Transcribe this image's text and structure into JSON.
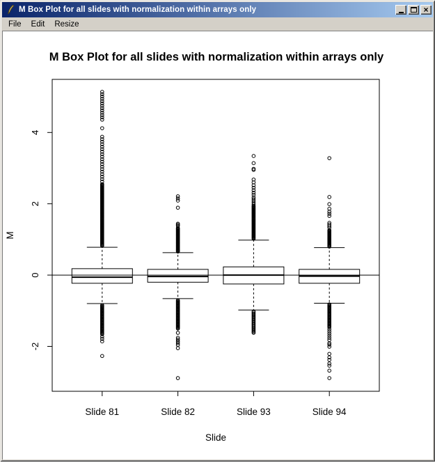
{
  "window": {
    "title": "M Box Plot for all slides with normalization within arrays only",
    "icon": "quill-pen-icon",
    "controls": {
      "minimize_icon": "minimize-icon",
      "maximize_icon": "maximize-icon",
      "close_icon": "close-icon",
      "close_glyph": "×"
    },
    "chrome_color": "#d4d0c8",
    "titlebar_gradient": [
      "#0a246a",
      "#a6caf0"
    ]
  },
  "menu": {
    "items": [
      "File",
      "Edit",
      "Resize"
    ]
  },
  "chart_data": {
    "type": "boxplot",
    "title": "M Box Plot for all slides with normalization within arrays only",
    "xlabel": "Slide",
    "ylabel": "M",
    "categories": [
      "Slide 81",
      "Slide 82",
      "Slide 93",
      "Slide 94"
    ],
    "positions": [
      1,
      2,
      3,
      4
    ],
    "y_ticks": [
      -2,
      0,
      2,
      4
    ],
    "y_tick_labels": [
      "-2",
      "0",
      "2",
      "4"
    ],
    "reference_line_y": 0,
    "axes": {
      "xlim": [
        0.34,
        4.66
      ],
      "ylim": [
        -3.26,
        5.49
      ],
      "grid": false
    },
    "style": {
      "ink_color": "#000000",
      "box_fill": "#ffffff",
      "background": "#ffffff"
    },
    "groups": [
      {
        "label": "Slide 81",
        "stats": {
          "whisker_low": -0.8,
          "q1": -0.23,
          "median": -0.06,
          "q3": 0.18,
          "whisker_high": 0.78
        },
        "outliers": [
          4.12,
          -1.73,
          -1.79,
          -1.86,
          -2.27
        ],
        "outliers_dense": [
          [
            0.82,
            2.55,
            0.02
          ],
          [
            2.55,
            3.9,
            0.07
          ],
          [
            4.36,
            5.2,
            0.065
          ],
          [
            -1.66,
            -0.84,
            0.022
          ]
        ]
      },
      {
        "label": "Slide 82",
        "stats": {
          "whisker_low": -0.66,
          "q1": -0.2,
          "median": -0.04,
          "q3": 0.16,
          "whisker_high": 0.63
        },
        "outliers": [
          1.38,
          1.41,
          1.44,
          1.89,
          2.09,
          2.15,
          2.21,
          -1.62,
          -1.76,
          -1.81,
          -1.86,
          -1.91,
          -1.96,
          -2.05,
          -2.89
        ],
        "outliers_dense": [
          [
            0.66,
            1.33,
            0.02
          ],
          [
            -1.5,
            -0.7,
            0.022
          ]
        ]
      },
      {
        "label": "Slide 93",
        "stats": {
          "whisker_low": -0.98,
          "q1": -0.25,
          "median": 0.0,
          "q3": 0.23,
          "whisker_high": 0.98
        },
        "outliers": [
          2.25,
          2.31,
          2.38,
          2.45,
          2.52,
          2.6,
          2.68,
          2.95,
          2.98,
          3.14,
          3.34
        ],
        "outliers_dense": [
          [
            1.02,
            1.95,
            0.02
          ],
          [
            1.98,
            2.2,
            0.05
          ],
          [
            -1.62,
            -1.02,
            0.03
          ]
        ]
      },
      {
        "label": "Slide 94",
        "stats": {
          "whisker_low": -0.79,
          "q1": -0.23,
          "median": -0.03,
          "q3": 0.16,
          "whisker_high": 0.77
        },
        "outliers": [
          1.66,
          1.72,
          1.78,
          1.86,
          1.99,
          2.19,
          3.28,
          -1.91,
          -1.95,
          -2.01,
          -2.21,
          -2.31,
          -2.38,
          -2.48,
          -2.54,
          -2.68,
          -2.89
        ],
        "outliers_dense": [
          [
            0.8,
            1.27,
            0.02
          ],
          [
            1.33,
            1.5,
            0.045
          ],
          [
            -1.46,
            -0.82,
            0.022
          ],
          [
            -1.82,
            -1.52,
            0.06
          ]
        ]
      }
    ]
  }
}
